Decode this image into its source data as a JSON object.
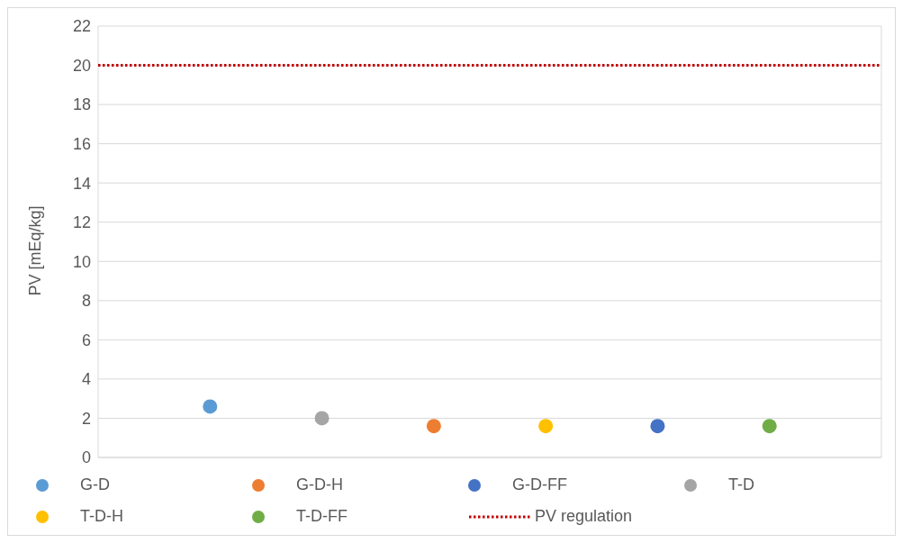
{
  "chart_data": {
    "type": "scatter",
    "ylabel": "PV [mEq/kg]",
    "categories": [
      null,
      null,
      null,
      null,
      null,
      null
    ],
    "ylim": [
      0,
      22
    ],
    "yticks": [
      0,
      2,
      4,
      6,
      8,
      10,
      12,
      14,
      16,
      18,
      20,
      22
    ],
    "grid": true,
    "legend": "bottom",
    "marker": "circle",
    "series": [
      {
        "name": "G-D",
        "color": "#5b9bd5",
        "values": [
          2.6,
          null,
          null,
          null,
          null,
          null
        ]
      },
      {
        "name": "G-D-H",
        "color": "#ed7d31",
        "values": [
          null,
          null,
          1.6,
          null,
          null,
          null
        ]
      },
      {
        "name": "G-D-FF",
        "color": "#4472c4",
        "values": [
          null,
          null,
          null,
          null,
          1.6,
          null
        ]
      },
      {
        "name": "T-D",
        "color": "#a5a5a5",
        "values": [
          null,
          2.0,
          null,
          null,
          null,
          null
        ]
      },
      {
        "name": "T-D-H",
        "color": "#ffc000",
        "values": [
          null,
          null,
          null,
          1.6,
          null,
          null
        ]
      },
      {
        "name": "T-D-FF",
        "color": "#70ad47",
        "values": [
          null,
          null,
          null,
          null,
          null,
          1.6
        ]
      }
    ],
    "ref_lines": [
      {
        "axis": "y",
        "value": 20,
        "label": "PV regulation",
        "color": "#c00000",
        "line_style": "dotted"
      }
    ]
  }
}
